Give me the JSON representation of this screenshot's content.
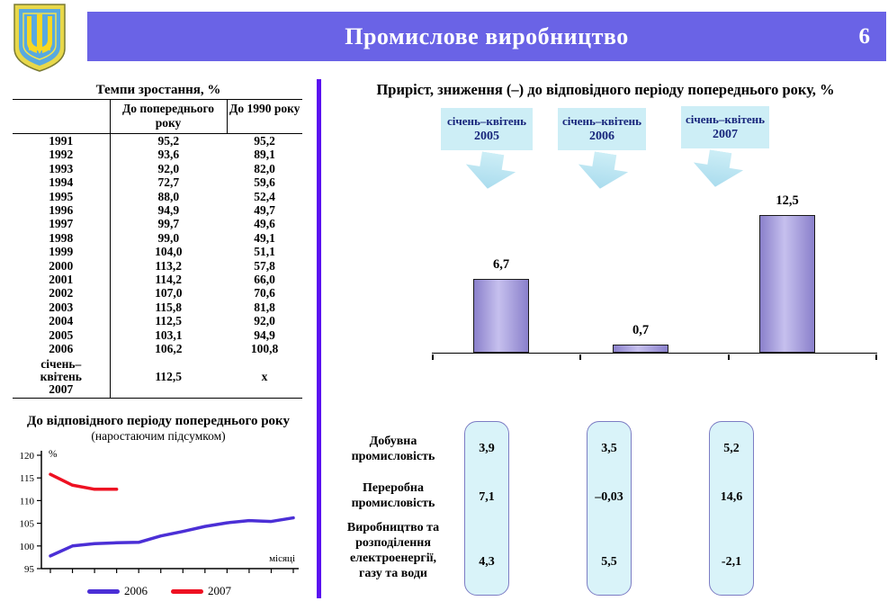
{
  "header": {
    "title": "Промислове виробництво",
    "page_number": "6"
  },
  "left": {
    "table": {
      "title": "Темпи зростання, %",
      "columns": [
        "До попереднього року",
        "До 1990 року"
      ],
      "rows": [
        [
          "1991",
          "95,2",
          "95,2"
        ],
        [
          "1992",
          "93,6",
          "89,1"
        ],
        [
          "1993",
          "92,0",
          "82,0"
        ],
        [
          "1994",
          "72,7",
          "59,6"
        ],
        [
          "1995",
          "88,0",
          "52,4"
        ],
        [
          "1996",
          "94,9",
          "49,7"
        ],
        [
          "1997",
          "99,7",
          "49,6"
        ],
        [
          "1998",
          "99,0",
          "49,1"
        ],
        [
          "1999",
          "104,0",
          "51,1"
        ],
        [
          "2000",
          "113,2",
          "57,8"
        ],
        [
          "2001",
          "114,2",
          "66,0"
        ],
        [
          "2002",
          "107,0",
          "70,6"
        ],
        [
          "2003",
          "115,8",
          "81,8"
        ],
        [
          "2004",
          "112,5",
          "92,0"
        ],
        [
          "2005",
          "103,1",
          "94,9"
        ],
        [
          "2006",
          "106,2",
          "100,8"
        ],
        [
          "січень–\nквітень\n2007",
          "112,5",
          "х"
        ]
      ]
    }
  },
  "right": {
    "title": "Приріст, зниження (–) до відповідного періоду попереднього року, %",
    "periods": [
      {
        "label": "січень–квітень",
        "year": "2005"
      },
      {
        "label": "січень–квітень",
        "year": "2006"
      },
      {
        "label": "січень–квітень",
        "year": "2007"
      }
    ],
    "sectors": {
      "row_labels": [
        "Добувна\nпромисловість",
        "Переробна\nпромисловість",
        "Виробництво та\nрозподілення\nелектроенергії,\nгазу та води"
      ],
      "columns": [
        [
          "3,9",
          "7,1",
          "4,3"
        ],
        [
          "3,5",
          "–0,03",
          "5,5"
        ],
        [
          "5,2",
          "14,6",
          "-2,1"
        ]
      ]
    }
  },
  "chart_data": [
    {
      "type": "bar",
      "title": "Приріст, зниження (–) до відповідного періоду попереднього року, %",
      "categories": [
        "січень–квітень 2005",
        "січень–квітень 2006",
        "січень–квітень 2007"
      ],
      "values": [
        6.7,
        0.7,
        12.5
      ],
      "value_labels": [
        "6,7",
        "0,7",
        "12,5"
      ],
      "ylim": [
        0,
        14
      ],
      "grid": false,
      "bar_edge_color": "#8a80cb",
      "bar_center_color": "#c6c0ee"
    },
    {
      "type": "line",
      "title": "До відповідного періоду попереднього року",
      "subtitle": "(наростаючим підсумком)",
      "ylabel": "%",
      "xlabel": "місяці",
      "ylim": [
        95,
        120
      ],
      "yticks": [
        95,
        100,
        105,
        110,
        115,
        120
      ],
      "x": [
        1,
        2,
        3,
        4,
        5,
        6,
        7,
        8,
        9,
        10,
        11,
        12
      ],
      "legend_position": "bottom",
      "grid": false,
      "series": [
        {
          "name": "2006",
          "color": "#4b2fd6",
          "values": [
            97.8,
            100.0,
            100.5,
            100.7,
            100.8,
            102.2,
            103.2,
            104.3,
            105.1,
            105.6,
            105.4,
            106.2
          ]
        },
        {
          "name": "2007",
          "color": "#ee1122",
          "values": [
            115.8,
            113.4,
            112.5,
            112.5
          ]
        }
      ]
    }
  ],
  "colors": {
    "header_bar": "#6a63e6",
    "header_text": "#ffffff",
    "divider": "#5a10f0",
    "period_box_fill": "#cdeef6",
    "period_box_text": "#17257b",
    "arrow_fill": "#aadcee",
    "sector_box_fill": "#d9f3f9",
    "sector_box_border": "#7c7cc4"
  }
}
